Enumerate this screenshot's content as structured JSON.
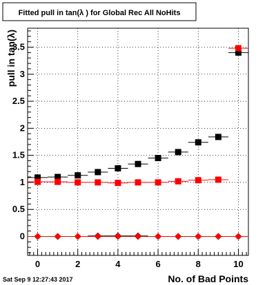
{
  "chart_data": {
    "type": "scatter",
    "title": "Fitted pull in tan(λ ) for Global Rec All NoHits",
    "xlabel": "No. of Bad Points",
    "ylabel": "pull in tan(λ)",
    "xlim": [
      -0.5,
      10.5
    ],
    "ylim": [
      -0.35,
      3.85
    ],
    "grid": true,
    "x_ticks": [
      0,
      2,
      4,
      6,
      8,
      10
    ],
    "x_tick_labels": [
      "0",
      "2",
      "4",
      "6",
      "8",
      "10"
    ],
    "y_ticks": [
      0,
      0.5,
      1,
      1.5,
      2,
      2.5,
      3,
      3.5
    ],
    "y_tick_labels": [
      "0",
      "0.5",
      "1",
      "1.5",
      "2",
      "2.5",
      "3",
      "3.5"
    ],
    "series": [
      {
        "color": "#000000",
        "marker": "square",
        "x": [
          0,
          1,
          2,
          3,
          4,
          5,
          6,
          7,
          8,
          9,
          10
        ],
        "y": [
          1.09,
          1.1,
          1.13,
          1.19,
          1.26,
          1.34,
          1.45,
          1.56,
          1.74,
          1.84,
          3.4
        ],
        "x_err": 0.5
      },
      {
        "color": "#ff0000",
        "marker": "square",
        "x": [
          0,
          1,
          2,
          3,
          4,
          5,
          6,
          7,
          8,
          9,
          10
        ],
        "y": [
          1.01,
          1.01,
          1.0,
          1.0,
          0.99,
          1.0,
          1.0,
          1.02,
          1.04,
          1.05,
          3.48
        ],
        "x_err": 0.5
      },
      {
        "color": "#000000",
        "marker": "diamond",
        "x": [
          0,
          1,
          2,
          3,
          4,
          5,
          6,
          7,
          8,
          9,
          10
        ],
        "y": [
          0.0,
          0.0,
          0.0,
          0.01,
          0.01,
          0.01,
          0.0,
          0.0,
          0.0,
          0.0,
          0.0
        ],
        "x_err": 0.5
      },
      {
        "color": "#ff0000",
        "marker": "diamond",
        "x": [
          0,
          1,
          2,
          3,
          4,
          5,
          6,
          7,
          8,
          9,
          10
        ],
        "y": [
          0.0,
          0.0,
          0.0,
          0.0,
          0.0,
          0.0,
          0.0,
          0.0,
          0.0,
          0.0,
          0.0
        ],
        "x_err": 0.5
      }
    ]
  },
  "timestamp": "Sat Sep  9 12:27:43 2017"
}
